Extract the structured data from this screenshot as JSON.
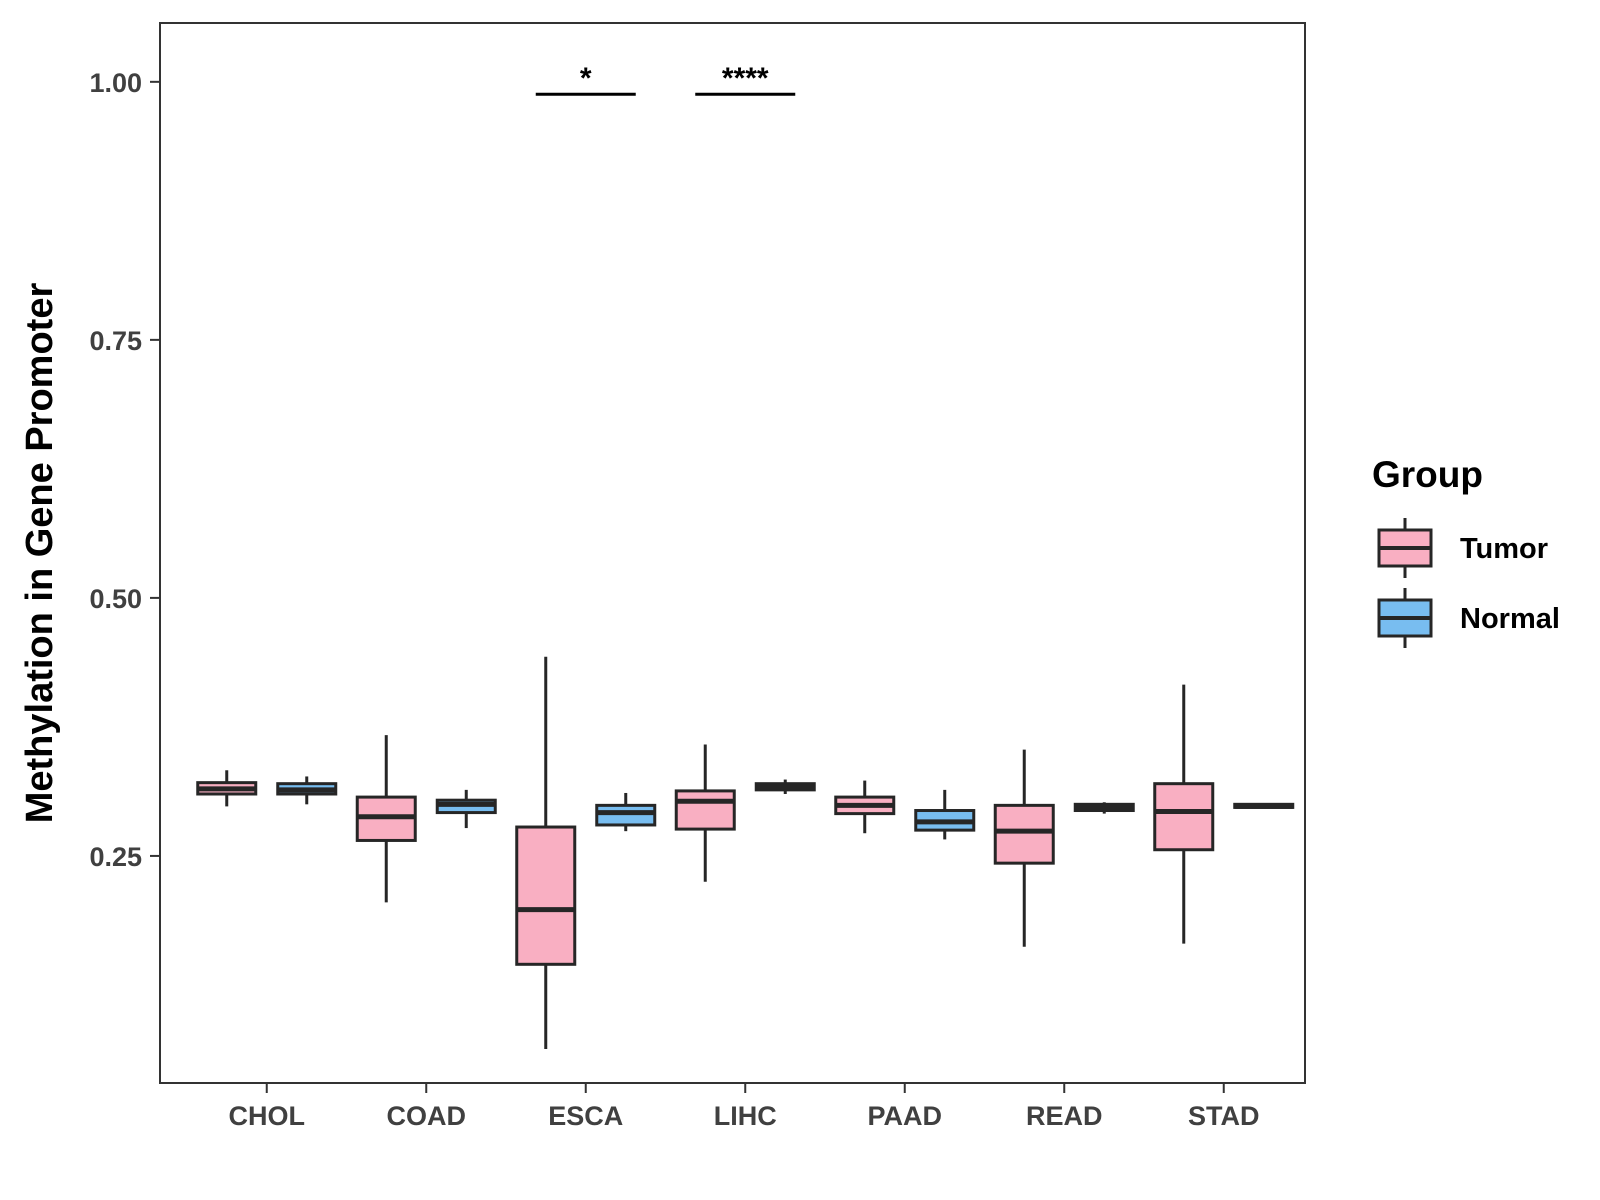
{
  "chart_data": {
    "type": "boxplot",
    "ylabel": "Methylation in Gene Promoter",
    "xlabel": "",
    "ylim": [
      0.03,
      1.057
    ],
    "yticks": [
      0.25,
      0.5,
      0.75,
      1.0
    ],
    "ytick_labels": [
      "0.25",
      "0.50",
      "0.75",
      "1.00"
    ],
    "categories": [
      "CHOL",
      "COAD",
      "ESCA",
      "LIHC",
      "PAAD",
      "READ",
      "STAD"
    ],
    "legend": {
      "title": "Group",
      "position": "right",
      "entries": [
        {
          "name": "Tumor",
          "color": "#F9AFC2"
        },
        {
          "name": "Normal",
          "color": "#78BDF0"
        }
      ]
    },
    "series": [
      {
        "name": "Tumor",
        "color": "#F9AFC2",
        "boxes": [
          {
            "category": "CHOL",
            "min": 0.298,
            "q1": 0.31,
            "median": 0.315,
            "q3": 0.321,
            "max": 0.333
          },
          {
            "category": "COAD",
            "min": 0.205,
            "q1": 0.265,
            "median": 0.288,
            "q3": 0.307,
            "max": 0.367
          },
          {
            "category": "ESCA",
            "min": 0.063,
            "q1": 0.145,
            "median": 0.198,
            "q3": 0.278,
            "max": 0.443
          },
          {
            "category": "LIHC",
            "min": 0.225,
            "q1": 0.276,
            "median": 0.303,
            "q3": 0.313,
            "max": 0.358
          },
          {
            "category": "PAAD",
            "min": 0.272,
            "q1": 0.291,
            "median": 0.299,
            "q3": 0.307,
            "max": 0.323
          },
          {
            "category": "READ",
            "min": 0.162,
            "q1": 0.243,
            "median": 0.274,
            "q3": 0.299,
            "max": 0.353
          },
          {
            "category": "STAD",
            "min": 0.165,
            "q1": 0.256,
            "median": 0.293,
            "q3": 0.32,
            "max": 0.416
          }
        ]
      },
      {
        "name": "Normal",
        "color": "#78BDF0",
        "boxes": [
          {
            "category": "CHOL",
            "min": 0.3,
            "q1": 0.31,
            "median": 0.314,
            "q3": 0.32,
            "max": 0.327
          },
          {
            "category": "COAD",
            "min": 0.277,
            "q1": 0.292,
            "median": 0.3,
            "q3": 0.304,
            "max": 0.314
          },
          {
            "category": "ESCA",
            "min": 0.274,
            "q1": 0.28,
            "median": 0.292,
            "q3": 0.299,
            "max": 0.311
          },
          {
            "category": "LIHC",
            "min": 0.31,
            "q1": 0.314,
            "median": 0.317,
            "q3": 0.32,
            "max": 0.324
          },
          {
            "category": "PAAD",
            "min": 0.266,
            "q1": 0.275,
            "median": 0.283,
            "q3": 0.294,
            "max": 0.314
          },
          {
            "category": "READ",
            "min": 0.291,
            "q1": 0.294,
            "median": 0.297,
            "q3": 0.3,
            "max": 0.302
          },
          {
            "category": "STAD",
            "min": 0.296,
            "q1": 0.297,
            "median": 0.298,
            "q3": 0.3,
            "max": 0.301
          }
        ]
      }
    ],
    "annotations": [
      {
        "category": "ESCA",
        "label": "*",
        "y": 0.988
      },
      {
        "category": "LIHC",
        "label": "****",
        "y": 0.988
      }
    ]
  }
}
